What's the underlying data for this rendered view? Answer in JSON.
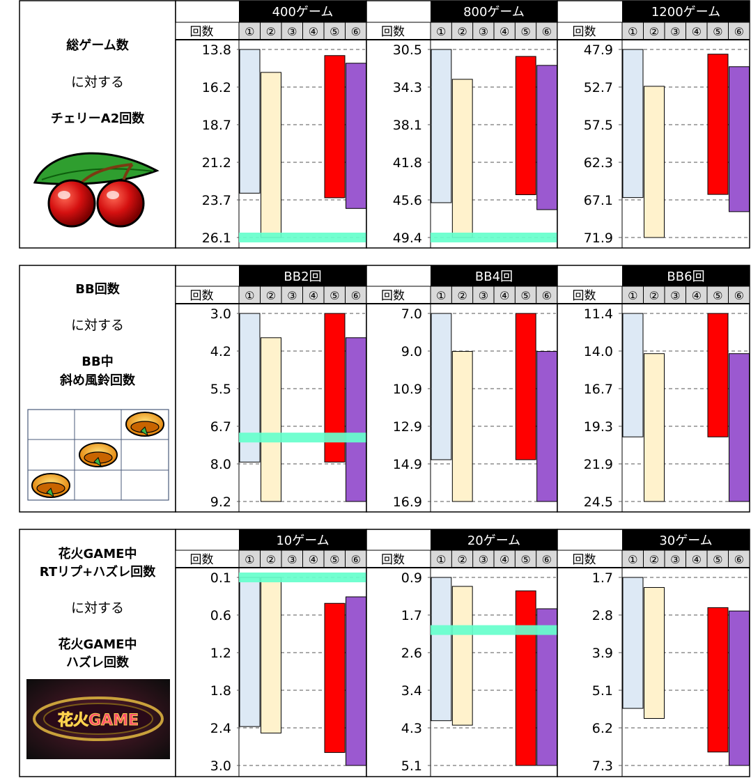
{
  "count_header": "回数",
  "setting_labels": [
    "①",
    "②",
    "③",
    "④",
    "⑤",
    "⑥"
  ],
  "colors": {
    "s1": "#dde9f5",
    "s2": "#fff2cc",
    "s5": "#ff0000",
    "s6": "#9b59d0",
    "target": "#66ffcc",
    "header_bg": "#000000"
  },
  "sections": [
    {
      "left": {
        "lines": [
          "総ゲーム数",
          "に対する",
          "チェリーA2回数"
        ],
        "bold": [
          true,
          false,
          true
        ],
        "icon": "cherry-icon"
      },
      "charts": [
        {
          "title": "400ゲーム",
          "ticks": [
            "13.8",
            "16.2",
            "18.7",
            "21.2",
            "23.7",
            "26.1"
          ],
          "target_tick": 5
        },
        {
          "title": "800ゲーム",
          "ticks": [
            "30.5",
            "34.3",
            "38.1",
            "41.8",
            "45.6",
            "49.4"
          ],
          "target_tick": 5
        },
        {
          "title": "1200ゲーム",
          "ticks": [
            "47.9",
            "52.7",
            "57.5",
            "62.3",
            "67.1",
            "71.9"
          ],
          "target_tick": null
        }
      ]
    },
    {
      "left": {
        "lines": [
          "BB回数",
          "に対する",
          "BB中",
          "斜め風鈴回数"
        ],
        "bold": [
          true,
          false,
          true,
          true
        ],
        "icon": "diagonal-bell-grid-icon"
      },
      "charts": [
        {
          "title": "BB2回",
          "ticks": [
            "3.0",
            "4.2",
            "5.5",
            "6.7",
            "8.0",
            "9.2"
          ],
          "target_tick": 3.3
        },
        {
          "title": "BB4回",
          "ticks": [
            "7.0",
            "9.0",
            "10.9",
            "12.9",
            "14.9",
            "16.9"
          ],
          "target_tick": null
        },
        {
          "title": "BB6回",
          "ticks": [
            "11.4",
            "14.0",
            "16.7",
            "19.3",
            "21.9",
            "24.5"
          ],
          "target_tick": null
        }
      ]
    },
    {
      "left": {
        "lines": [
          "花火GAME中",
          "RTリプ+ハズレ回数",
          "に対する",
          "花火GAME中",
          "ハズレ回数"
        ],
        "bold": [
          true,
          true,
          false,
          true,
          true
        ],
        "icon": "hanabi-game-logo-icon",
        "logo_text": "花火GAME"
      },
      "charts": [
        {
          "title": "10ゲーム",
          "ticks": [
            "0.1",
            "0.6",
            "1.2",
            "1.8",
            "2.4",
            "3.0"
          ],
          "target_tick": 0
        },
        {
          "title": "20ゲーム",
          "ticks": [
            "0.9",
            "1.7",
            "2.6",
            "3.4",
            "4.3",
            "5.1"
          ],
          "target_tick": 1.4
        },
        {
          "title": "30ゲーム",
          "ticks": [
            "1.7",
            "2.8",
            "3.9",
            "5.1",
            "6.2",
            "7.3"
          ],
          "target_tick": null
        }
      ]
    }
  ],
  "chart_data": [
    {
      "type": "bar",
      "title": "400ゲーム",
      "ylabel": "回数",
      "ylim": [
        13.8,
        26.1
      ],
      "y_inverted": true,
      "series": [
        {
          "name": "①",
          "range": [
            13.8,
            23.2
          ]
        },
        {
          "name": "②",
          "range": [
            15.3,
            26.1
          ]
        },
        {
          "name": "⑤",
          "range": [
            14.2,
            23.5
          ]
        },
        {
          "name": "⑥",
          "range": [
            14.7,
            24.2
          ]
        }
      ],
      "target": 26.1
    },
    {
      "type": "bar",
      "title": "800ゲーム",
      "ylabel": "回数",
      "ylim": [
        30.5,
        49.4
      ],
      "y_inverted": true,
      "series": [
        {
          "name": "①",
          "range": [
            30.5,
            45.9
          ]
        },
        {
          "name": "②",
          "range": [
            33.5,
            49.4
          ]
        },
        {
          "name": "⑤",
          "range": [
            31.2,
            45.1
          ]
        },
        {
          "name": "⑥",
          "range": [
            32.1,
            46.6
          ]
        }
      ],
      "target": 49.4
    },
    {
      "type": "bar",
      "title": "1200ゲーム",
      "ylabel": "回数",
      "ylim": [
        47.9,
        71.9
      ],
      "y_inverted": true,
      "series": [
        {
          "name": "①",
          "range": [
            47.9,
            66.8
          ]
        },
        {
          "name": "②",
          "range": [
            52.6,
            71.9
          ]
        },
        {
          "name": "⑤",
          "range": [
            48.5,
            66.4
          ]
        },
        {
          "name": "⑥",
          "range": [
            50.1,
            68.6
          ]
        }
      ],
      "target": null
    },
    {
      "type": "bar",
      "title": "BB2回",
      "ylabel": "回数",
      "ylim": [
        3.0,
        9.2
      ],
      "y_inverted": true,
      "series": [
        {
          "name": "①",
          "range": [
            3.0,
            7.9
          ]
        },
        {
          "name": "②",
          "range": [
            3.8,
            9.2
          ]
        },
        {
          "name": "⑤",
          "range": [
            3.0,
            7.9
          ]
        },
        {
          "name": "⑥",
          "range": [
            3.8,
            9.2
          ]
        }
      ],
      "target": 7.1
    },
    {
      "type": "bar",
      "title": "BB4回",
      "ylabel": "回数",
      "ylim": [
        7.0,
        16.9
      ],
      "y_inverted": true,
      "series": [
        {
          "name": "①",
          "range": [
            7.0,
            14.7
          ]
        },
        {
          "name": "②",
          "range": [
            9.0,
            16.9
          ]
        },
        {
          "name": "⑤",
          "range": [
            7.0,
            14.7
          ]
        },
        {
          "name": "⑥",
          "range": [
            9.0,
            16.9
          ]
        }
      ],
      "target": null
    },
    {
      "type": "bar",
      "title": "BB6回",
      "ylabel": "回数",
      "ylim": [
        11.4,
        24.5
      ],
      "y_inverted": true,
      "series": [
        {
          "name": "①",
          "range": [
            11.4,
            20.0
          ]
        },
        {
          "name": "②",
          "range": [
            14.2,
            24.5
          ]
        },
        {
          "name": "⑤",
          "range": [
            11.4,
            20.0
          ]
        },
        {
          "name": "⑥",
          "range": [
            14.2,
            24.5
          ]
        }
      ],
      "target": null
    },
    {
      "type": "bar",
      "title": "10ゲーム",
      "ylabel": "回数",
      "ylim": [
        0.1,
        3.0
      ],
      "y_inverted": true,
      "series": [
        {
          "name": "①",
          "range": [
            0.1,
            2.4
          ]
        },
        {
          "name": "②",
          "range": [
            0.1,
            2.5
          ]
        },
        {
          "name": "⑤",
          "range": [
            0.5,
            2.8
          ]
        },
        {
          "name": "⑥",
          "range": [
            0.4,
            3.0
          ]
        }
      ],
      "target": 0.1
    },
    {
      "type": "bar",
      "title": "20ゲーム",
      "ylabel": "回数",
      "ylim": [
        0.9,
        5.1
      ],
      "y_inverted": true,
      "series": [
        {
          "name": "①",
          "range": [
            0.9,
            4.1
          ]
        },
        {
          "name": "②",
          "range": [
            1.1,
            4.2
          ]
        },
        {
          "name": "⑤",
          "range": [
            1.2,
            5.1
          ]
        },
        {
          "name": "⑥",
          "range": [
            1.6,
            5.1
          ]
        }
      ],
      "target": 2.1
    },
    {
      "type": "bar",
      "title": "30ゲーム",
      "ylabel": "回数",
      "ylim": [
        1.7,
        7.3
      ],
      "y_inverted": true,
      "series": [
        {
          "name": "①",
          "range": [
            1.7,
            5.6
          ]
        },
        {
          "name": "②",
          "range": [
            2.0,
            5.9
          ]
        },
        {
          "name": "⑤",
          "range": [
            2.6,
            6.9
          ]
        },
        {
          "name": "⑥",
          "range": [
            2.7,
            7.3
          ]
        }
      ],
      "target": null
    }
  ]
}
